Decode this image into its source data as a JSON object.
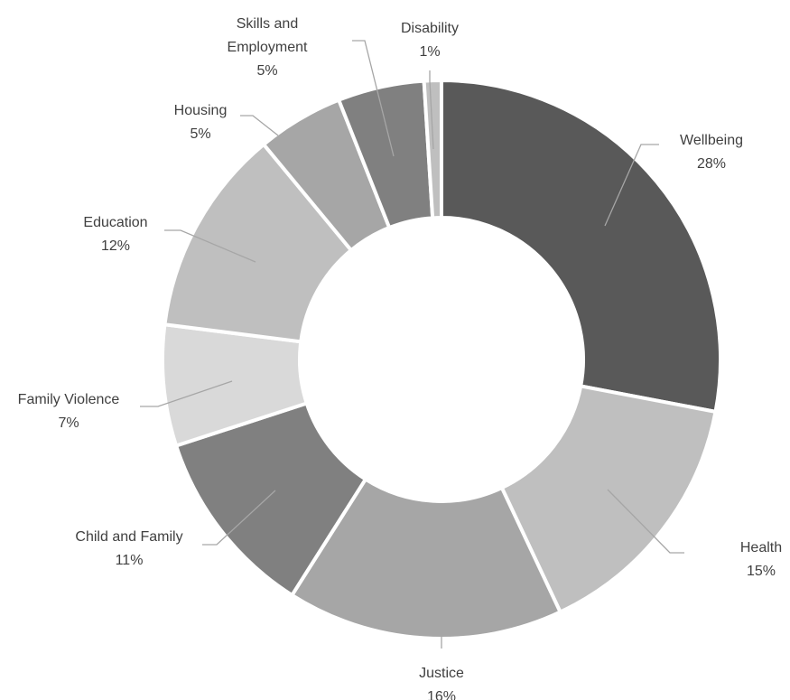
{
  "chart_data": {
    "type": "pie",
    "variant": "donut",
    "legend": "none",
    "categories": [
      "Wellbeing",
      "Health",
      "Justice",
      "Child and Family",
      "Family Violence",
      "Education",
      "Housing",
      "Skills and Employment",
      "Disability"
    ],
    "values": [
      28,
      15,
      16,
      11,
      7,
      12,
      5,
      5,
      1
    ],
    "data_labels": [
      "28%",
      "15%",
      "16%",
      "11%",
      "7%",
      "12%",
      "5%",
      "5%",
      "1%"
    ],
    "colors": [
      "#595959",
      "#bfbfbf",
      "#a6a6a6",
      "#808080",
      "#d9d9d9",
      "#bfbfbf",
      "#a6a6a6",
      "#808080",
      "#bfbfbf"
    ]
  }
}
